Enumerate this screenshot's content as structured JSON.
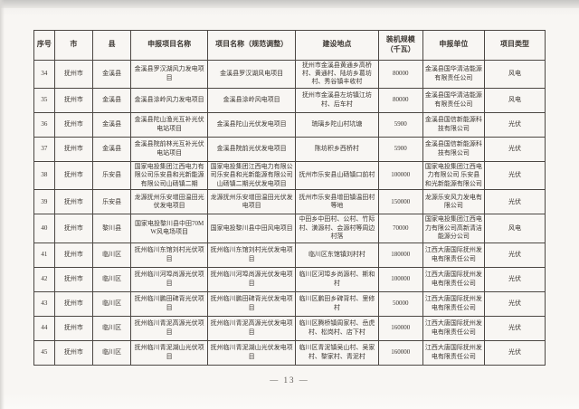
{
  "page": {
    "number_label": "— 13 —"
  },
  "table": {
    "columns": [
      "序号",
      "市",
      "县",
      "申报项目名称",
      "项目名称（规范调整）",
      "建设地点",
      "装机规模（千瓦）",
      "申报单位",
      "项目类型"
    ],
    "rows": [
      [
        "34",
        "抚州市",
        "金溪县",
        "金溪县罗汉湖风力发电项目",
        "金溪县罗汉湖风电项目",
        "抚州市金溪县黄通乡高桥村、黄通村、陆坊乡葛坊村、秀谷镇丰收村",
        "80000",
        "金溪县国华清洁能源有限责任公司",
        "风电"
      ],
      [
        "35",
        "抚州市",
        "金溪县",
        "金溪县涂岭风力发电项目",
        "金溪县涂岭风电项目",
        "抚州市金溪县左坊镇江坊村、后车村",
        "80000",
        "金溪县国华清洁能源有限责任公司",
        "风电"
      ],
      [
        "36",
        "抚州市",
        "金溪县",
        "金溪县陀山渔光互补光伏电站项目",
        "金溪县陀山光伏发电项目",
        "琉璃乡陀山村坑塘",
        "5900",
        "金溪县国信新能源科技有限公司",
        "光伏"
      ],
      [
        "37",
        "抚州市",
        "金溪县",
        "金溪县院前林光互补光伏电站项目",
        "金溪县院前光伏发电项目",
        "陈坊积乡西桥村",
        "5900",
        "金溪县国信新能源科技有限公司",
        "光伏"
      ],
      [
        "38",
        "抚州市",
        "乐安县",
        "国家电投集团江西电力有限公司乐安县和光新能源有限公司山砀镇二期",
        "国家电投集团江西电力有限公司乐安县和光新能源有限公司山砀镇二期光伏发电项目",
        "抚州市乐安县山砀镇口前村",
        "100000",
        "国家电投集团江西电力有限公司 乐安县和光新能源有限公司",
        "光伏"
      ],
      [
        "39",
        "抚州市",
        "乐安县",
        "龙源抚州乐安增田温田光伏发电项目",
        "龙源抚州乐安增田温田光伏发电项目",
        "抚州市乐安县增田镇温田村等地",
        "150000",
        "龙源乐安风力发电有限公司",
        "光伏"
      ],
      [
        "40",
        "抚州市",
        "黎川县",
        "国家电投黎川县中田70MW风电场项目",
        "国家电投黎川县中田风电项目",
        "中田乡中田村、公村、竹际村、潢源村、会源村等周边村落",
        "70000",
        "国家电投集团江西电力有限公司高新清洁能源分公司",
        "风电"
      ],
      [
        "41",
        "抚州市",
        "临川区",
        "抚州临川东馆刘村光伏项目",
        "抚州临川东馆刘村光伏发电项目",
        "临川区东馆镇刘村村",
        "180000",
        "江西大唐国际抚州发电有限责任公司",
        "光伏"
      ],
      [
        "42",
        "抚州市",
        "临川区",
        "抚州临川河埠尚源光伏项目",
        "抚州临川河埠尚源光伏发电项目",
        "临川区河埠乡尚源村、斯和村",
        "100000",
        "江西大唐国际抚州发电有限责任公司",
        "光伏"
      ],
      [
        "43",
        "抚州市",
        "临川区",
        "抚州临川鹏田碑背光伏项目",
        "抚州临川鹏田碑背光伏发电项目",
        "临川区鹏田乡碑背村、里修村",
        "50000",
        "江西大唐国际抚州发电有限责任公司",
        "光伏"
      ],
      [
        "44",
        "抚州市",
        "临川区",
        "抚州临川青泥高源光伏项目",
        "抚州临川青泥高源光伏发电项目",
        "临川区腾桥镇周家村、岳虎村、松岗村、店下村",
        "160000",
        "江西大唐国际抚州发电有限责任公司",
        "光伏"
      ],
      [
        "45",
        "抚州市",
        "临川区",
        "抚州临川青泥湖山光伏项目",
        "抚州临川青泥湖山光伏发电项目",
        "临川区青泥镇吴山村、吴家村、黎家村、青泥村",
        "160000",
        "江西大唐国际抚州发电有限责任公司",
        "光伏"
      ]
    ]
  }
}
